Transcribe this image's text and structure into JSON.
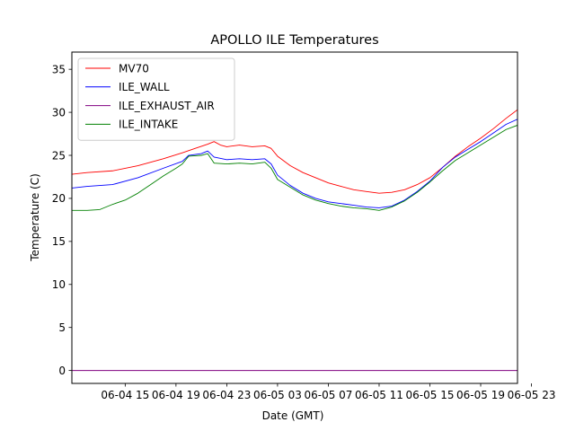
{
  "chart_data": {
    "type": "line",
    "title": "APOLLO ILE Temperatures",
    "xlabel": "Date (GMT)",
    "ylabel": "Temperature (C)",
    "xlim": [
      10.8,
      45.9
    ],
    "ylim": [
      -1.5,
      37
    ],
    "x_unit": "hours since 06-04 00:00 GMT",
    "x_ticks": [
      {
        "value": 15,
        "label": "06-04 15"
      },
      {
        "value": 19,
        "label": "06-04 19"
      },
      {
        "value": 23,
        "label": "06-04 23"
      },
      {
        "value": 27,
        "label": "06-05 03"
      },
      {
        "value": 31,
        "label": "06-05 07"
      },
      {
        "value": 35,
        "label": "06-05 11"
      },
      {
        "value": 39,
        "label": "06-05 15"
      },
      {
        "value": 43,
        "label": "06-05 19"
      },
      {
        "value": 47,
        "label": "06-05 23"
      }
    ],
    "y_ticks": [
      0,
      5,
      10,
      15,
      20,
      25,
      30,
      35
    ],
    "legend_position": "upper-left",
    "series": [
      {
        "name": "MV70",
        "color": "#ff0000",
        "x": [
          10.8,
          12,
          14,
          16,
          18,
          19.5,
          20.5,
          21.5,
          22,
          22.5,
          23,
          24,
          25,
          26,
          26.5,
          27,
          28,
          29,
          30,
          31,
          32,
          33,
          34,
          35,
          36,
          37,
          38,
          39,
          40,
          41,
          42,
          43,
          44,
          45,
          45.9
        ],
        "y": [
          22.8,
          23.0,
          23.2,
          23.8,
          24.6,
          25.3,
          25.8,
          26.3,
          26.6,
          26.2,
          26.0,
          26.2,
          26.0,
          26.1,
          25.8,
          24.9,
          23.8,
          23.0,
          22.4,
          21.8,
          21.4,
          21.0,
          20.8,
          20.6,
          20.7,
          21.0,
          21.6,
          22.4,
          23.6,
          24.9,
          26.0,
          27.0,
          28.1,
          29.3,
          30.3
        ]
      },
      {
        "name": "ILE_WALL",
        "color": "#0000ff",
        "x": [
          10.8,
          12,
          14,
          16,
          18,
          19.5,
          20,
          21,
          21.5,
          22,
          23,
          24,
          25,
          26,
          26.5,
          27,
          28,
          29,
          30,
          31,
          32,
          33,
          34,
          35,
          36,
          37,
          38,
          39,
          40,
          41,
          42,
          43,
          44,
          45,
          45.9
        ],
        "y": [
          21.2,
          21.4,
          21.6,
          22.4,
          23.5,
          24.3,
          25.0,
          25.2,
          25.5,
          24.8,
          24.5,
          24.6,
          24.5,
          24.6,
          24.0,
          22.7,
          21.5,
          20.6,
          20.0,
          19.6,
          19.4,
          19.2,
          19.0,
          18.9,
          19.1,
          19.8,
          20.8,
          22.0,
          23.6,
          24.8,
          25.7,
          26.6,
          27.6,
          28.6,
          29.2
        ]
      },
      {
        "name": "ILE_EXHAUST_AIR",
        "color": "#800080",
        "x": [
          10.8,
          45.9
        ],
        "y": [
          0.0,
          0.0
        ]
      },
      {
        "name": "ILE_INTAKE",
        "color": "#008000",
        "x": [
          10.8,
          12,
          13,
          14,
          15,
          16,
          17,
          18,
          19,
          19.5,
          20,
          21,
          21.5,
          22,
          23,
          24,
          25,
          26,
          26.5,
          27,
          28,
          29,
          30,
          31,
          32,
          33,
          34,
          35,
          36,
          37,
          38,
          39,
          40,
          41,
          42,
          43,
          44,
          45,
          45.9
        ],
        "y": [
          18.6,
          18.6,
          18.7,
          19.3,
          19.8,
          20.6,
          21.6,
          22.6,
          23.5,
          24.0,
          24.9,
          25.0,
          25.2,
          24.1,
          24.0,
          24.1,
          24.0,
          24.2,
          23.5,
          22.2,
          21.3,
          20.4,
          19.8,
          19.4,
          19.1,
          18.9,
          18.8,
          18.6,
          19.0,
          19.7,
          20.7,
          21.9,
          23.2,
          24.4,
          25.3,
          26.2,
          27.1,
          28.0,
          28.5
        ]
      }
    ]
  }
}
